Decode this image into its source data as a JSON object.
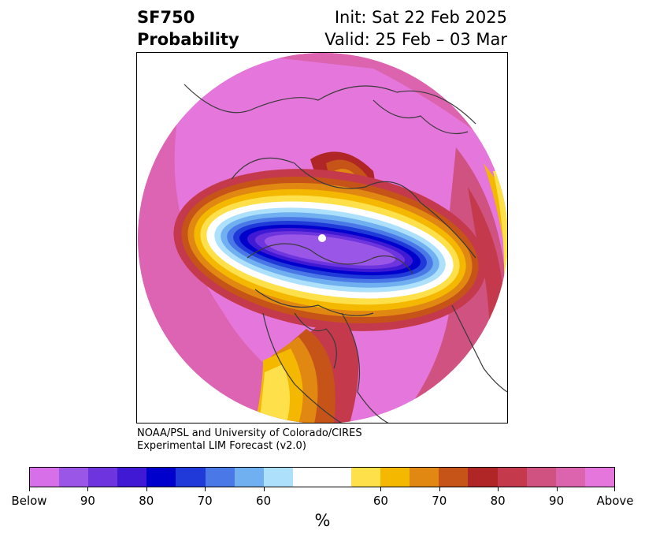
{
  "header": {
    "title_line1": "SF750",
    "title_line2": "Probability",
    "init": "Init: Sat 22 Feb 2025",
    "valid": "Valid: 25 Feb – 03 Mar"
  },
  "credit": {
    "line1": "NOAA/PSL and University of Colorado/CIRES",
    "line2": "Experimental LIM Forecast (v2.0)"
  },
  "colorbar": {
    "colors": [
      "#d76fe8",
      "#9a56e6",
      "#6e35df",
      "#3f19d4",
      "#0000cc",
      "#1f3ad8",
      "#4a78e6",
      "#70aff0",
      "#ade0fb",
      "#ffffff",
      "#ffffff",
      "#fee14a",
      "#f5b800",
      "#e08812",
      "#c65317",
      "#b02525",
      "#c43a4c",
      "#cf5280",
      "#dc63ad",
      "#e576dc"
    ],
    "tick_labels": [
      "Below",
      "90",
      "80",
      "70",
      "60",
      "60",
      "70",
      "80",
      "90",
      "Above"
    ],
    "unit": "%"
  },
  "map": {
    "projection": "north-polar-stereographic",
    "colors": {
      "magenta": "#e576dc",
      "pink": "#dc63ad",
      "rose": "#cf5280",
      "crimson": "#c43a4c",
      "red": "#b02525",
      "rust": "#c65317",
      "orange": "#e08812",
      "amber": "#f5b800",
      "yellow": "#fee14a",
      "light_blue": "#ade0fb",
      "sky": "#70aff0",
      "blue": "#4a78e6",
      "royal": "#1f3ad8",
      "navy": "#0000cc",
      "indigo": "#3f19d4",
      "violet": "#6e35df",
      "lavender": "#9a56e6",
      "orchid": "#d76fe8",
      "coast": "#3a3a3a"
    }
  }
}
